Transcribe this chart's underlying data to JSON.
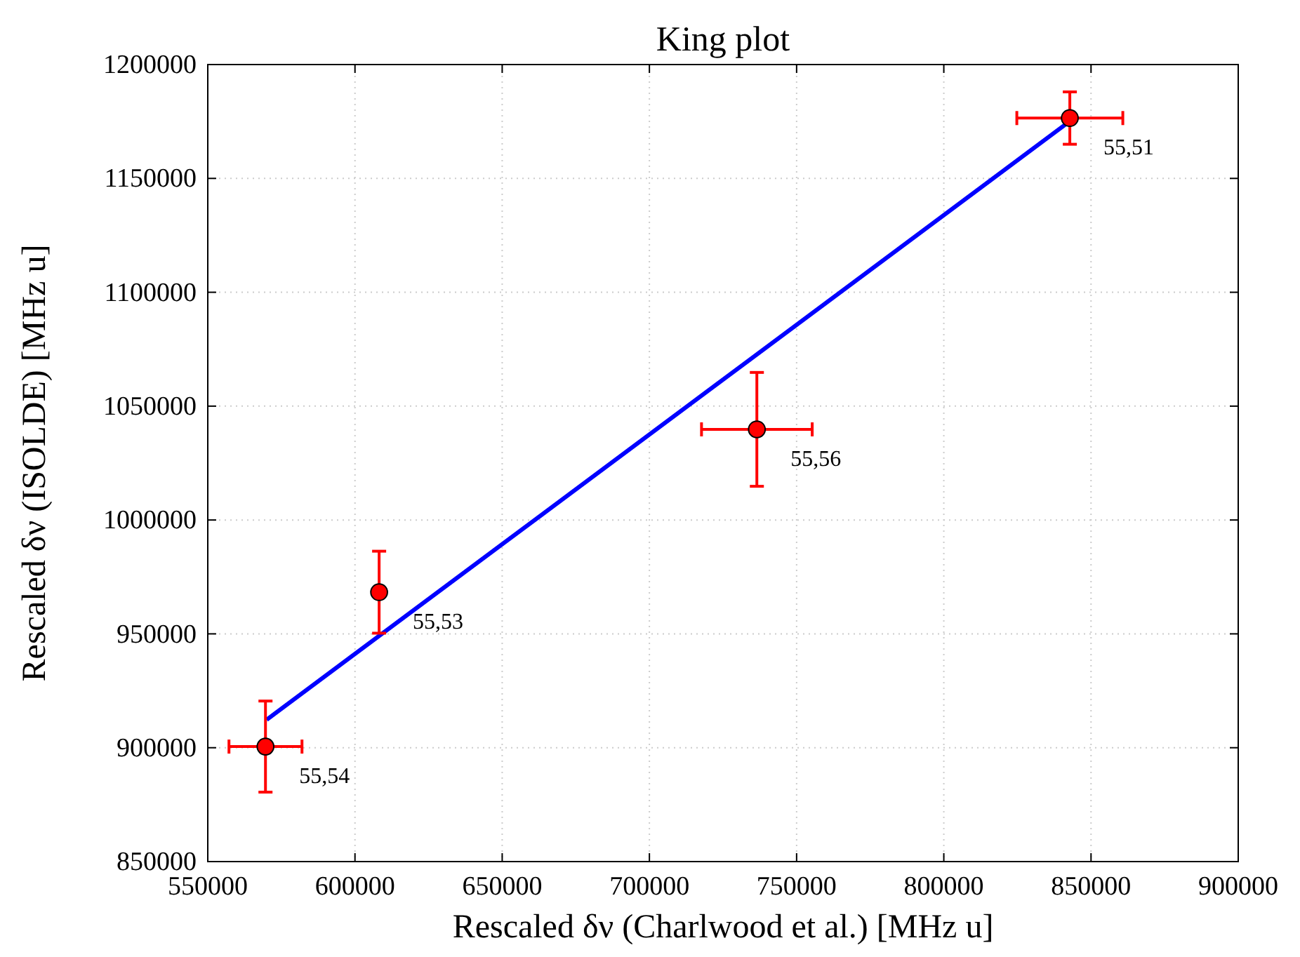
{
  "chart_data": {
    "type": "scatter",
    "title": "King plot",
    "xlabel": "Rescaled δν (Charlwood et al.) [MHz u]",
    "ylabel": "Rescaled δν (ISOLDE) [MHz u]",
    "xlim": [
      550000,
      900000
    ],
    "xticks": [
      550000,
      600000,
      650000,
      700000,
      750000,
      800000,
      850000,
      900000
    ],
    "ylim": [
      850000,
      1200000
    ],
    "yticks": [
      850000,
      900000,
      950000,
      1000000,
      1050000,
      1100000,
      1150000,
      1200000
    ],
    "grid": true,
    "marker": "circle",
    "series": [
      {
        "type": "line",
        "marker": "none",
        "color": "#0000ff",
        "x": [
          570000,
          843000
        ],
        "values": [
          912300,
          1175300
        ]
      },
      {
        "color": "#ff0000",
        "x": [
          842800,
          736500,
          608200,
          569600
        ],
        "values": [
          1176500,
          1039800,
          968300,
          900500
        ],
        "errors": [
          11500,
          25000,
          18000,
          20000
        ],
        "xerrors": [
          18000,
          18800,
          1000,
          12400
        ]
      }
    ],
    "annotations": [
      {
        "text": "55,51",
        "x": 842800,
        "y": 1176500
      },
      {
        "text": "55,56",
        "x": 736500,
        "y": 1039800
      },
      {
        "text": "55,53",
        "x": 608200,
        "y": 968300
      },
      {
        "text": "55,54",
        "x": 569600,
        "y": 900500
      }
    ]
  }
}
